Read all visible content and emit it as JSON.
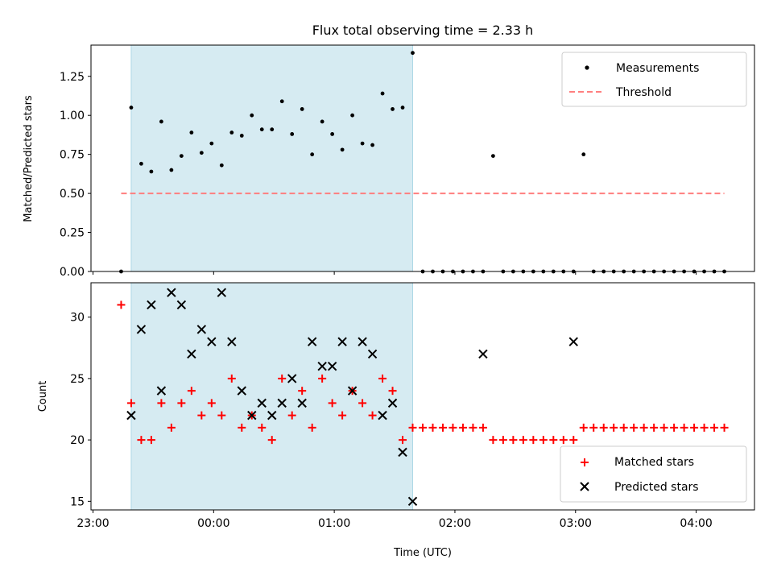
{
  "title": "Flux total observing time = 2.33 h",
  "colors": {
    "measurements": "#000000",
    "threshold": "#ff7f7f",
    "matched": "#ff0000",
    "predicted": "#000000",
    "highlight": "#add8e6"
  },
  "chart_data": [
    {
      "type": "scatter",
      "ylabel": "Matched/Predicted stars",
      "xlabel": "",
      "xlim": [
        "22:59",
        "04:29"
      ],
      "ylim": [
        0,
        1.45
      ],
      "yticks": [
        "0.00",
        "0.25",
        "0.50",
        "0.75",
        "1.00",
        "1.25"
      ],
      "grid": false,
      "legend_position": "top-right",
      "shaded_span": [
        "23:19",
        "01:39"
      ],
      "series": [
        {
          "name": "Measurements",
          "marker": "dot",
          "x": [
            "23:14",
            "23:19",
            "23:24",
            "23:29",
            "23:34",
            "23:39",
            "23:44",
            "23:49",
            "23:54",
            "23:59",
            "00:04",
            "00:09",
            "00:14",
            "00:19",
            "00:24",
            "00:29",
            "00:34",
            "00:39",
            "00:44",
            "00:49",
            "00:54",
            "00:59",
            "01:04",
            "01:09",
            "01:14",
            "01:19",
            "01:24",
            "01:29",
            "01:34",
            "01:39",
            "01:44",
            "01:49",
            "01:54",
            "01:59",
            "02:04",
            "02:09",
            "02:14",
            "02:19",
            "02:24",
            "02:29",
            "02:34",
            "02:39",
            "02:44",
            "02:49",
            "02:54",
            "02:59",
            "03:04",
            "03:09",
            "03:14",
            "03:19",
            "03:24",
            "03:29",
            "03:34",
            "03:39",
            "03:44",
            "03:49",
            "03:54",
            "03:59",
            "04:04",
            "04:09",
            "04:14"
          ],
          "y": [
            0.0,
            1.05,
            0.69,
            0.64,
            0.96,
            0.65,
            0.74,
            0.89,
            0.76,
            0.82,
            0.68,
            0.89,
            0.87,
            1.0,
            0.91,
            0.91,
            1.09,
            0.88,
            1.04,
            0.75,
            0.96,
            0.88,
            0.78,
            1.0,
            0.82,
            0.81,
            1.14,
            1.04,
            1.05,
            1.4,
            0.0,
            0.0,
            0.0,
            0.0,
            0.0,
            0.0,
            0.0,
            0.74,
            0.0,
            0.0,
            0.0,
            0.0,
            0.0,
            0.0,
            0.0,
            0.0,
            0.75,
            0.0,
            0.0,
            0.0,
            0.0,
            0.0,
            0.0,
            0.0,
            0.0,
            0.0,
            0.0,
            0.0,
            0.0,
            0.0,
            0.0
          ]
        },
        {
          "name": "Threshold",
          "style": "dashed",
          "x": [
            "23:14",
            "04:14"
          ],
          "y": [
            0.5,
            0.5
          ]
        }
      ]
    },
    {
      "type": "scatter",
      "ylabel": "Count",
      "xlabel": "Time (UTC)",
      "xlim": [
        "22:59",
        "04:29"
      ],
      "ylim": [
        14.3,
        32.8
      ],
      "yticks": [
        "15",
        "20",
        "25",
        "30"
      ],
      "xticks": [
        "23:00",
        "00:00",
        "01:00",
        "02:00",
        "03:00",
        "04:00"
      ],
      "grid": false,
      "legend_position": "bottom-right",
      "shaded_span": [
        "23:19",
        "01:39"
      ],
      "series": [
        {
          "name": "Matched stars",
          "marker": "plus",
          "x": [
            "23:14",
            "23:19",
            "23:24",
            "23:29",
            "23:34",
            "23:39",
            "23:44",
            "23:49",
            "23:54",
            "23:59",
            "00:04",
            "00:09",
            "00:14",
            "00:19",
            "00:24",
            "00:29",
            "00:34",
            "00:39",
            "00:44",
            "00:49",
            "00:54",
            "00:59",
            "01:04",
            "01:09",
            "01:14",
            "01:19",
            "01:24",
            "01:29",
            "01:34",
            "01:39",
            "01:44",
            "01:49",
            "01:54",
            "01:59",
            "02:04",
            "02:09",
            "02:14",
            "02:19",
            "02:24",
            "02:29",
            "02:34",
            "02:39",
            "02:44",
            "02:49",
            "02:54",
            "02:59",
            "03:04",
            "03:09",
            "03:14",
            "03:19",
            "03:24",
            "03:29",
            "03:34",
            "03:39",
            "03:44",
            "03:49",
            "03:54",
            "03:59",
            "04:04",
            "04:09",
            "04:14"
          ],
          "y": [
            31,
            23,
            20,
            20,
            23,
            21,
            23,
            24,
            22,
            23,
            22,
            25,
            21,
            22,
            21,
            20,
            25,
            22,
            24,
            21,
            25,
            23,
            22,
            24,
            23,
            22,
            25,
            24,
            20,
            21,
            21,
            21,
            21,
            21,
            21,
            21,
            21,
            20,
            20,
            20,
            20,
            20,
            20,
            20,
            20,
            20,
            21,
            21,
            21,
            21,
            21,
            21,
            21,
            21,
            21,
            21,
            21,
            21,
            21,
            21,
            21
          ]
        },
        {
          "name": "Predicted stars",
          "marker": "x",
          "x": [
            "23:19",
            "23:24",
            "23:29",
            "23:34",
            "23:39",
            "23:44",
            "23:49",
            "23:54",
            "23:59",
            "00:04",
            "00:09",
            "00:14",
            "00:19",
            "00:24",
            "00:29",
            "00:34",
            "00:39",
            "00:44",
            "00:49",
            "00:54",
            "00:59",
            "01:04",
            "01:09",
            "01:14",
            "01:19",
            "01:24",
            "01:29",
            "01:34",
            "01:39",
            "02:14",
            "02:59"
          ],
          "y": [
            22,
            29,
            31,
            24,
            32,
            31,
            27,
            29,
            28,
            32,
            28,
            24,
            22,
            23,
            22,
            23,
            25,
            23,
            28,
            26,
            26,
            28,
            24,
            28,
            27,
            22,
            23,
            19,
            15,
            27,
            28
          ]
        }
      ]
    }
  ]
}
